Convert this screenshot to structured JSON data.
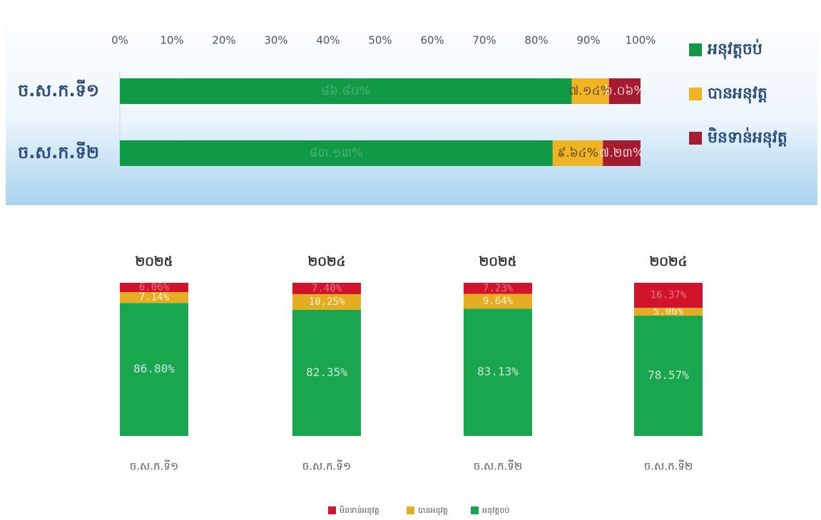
{
  "chart_data": [
    {
      "type": "bar",
      "orientation": "horizontal",
      "stacked": true,
      "legend": "right",
      "categories": [
        "ច.ស.ក.ទី១",
        "ច.ស.ក.ទី២"
      ],
      "xlim": [
        0,
        100
      ],
      "xticks": [
        {
          "value": 0,
          "label": "0%"
        },
        {
          "value": 10,
          "label": "10%"
        },
        {
          "value": 20,
          "label": "20%"
        },
        {
          "value": 30,
          "label": "30%"
        },
        {
          "value": 40,
          "label": "40%"
        },
        {
          "value": 50,
          "label": "50%"
        },
        {
          "value": 60,
          "label": "60%"
        },
        {
          "value": 70,
          "label": "70%"
        },
        {
          "value": 80,
          "label": "80%"
        },
        {
          "value": 90,
          "label": "90%"
        },
        {
          "value": 100,
          "label": "100%"
        }
      ],
      "series": [
        {
          "name": "អនុវត្តចប់",
          "color": "#109a46",
          "label_color": "#4fb07a",
          "values": [
            86.8,
            83.13
          ],
          "value_labels": [
            "៨៦.៨០%",
            "៨៣.១៣%"
          ]
        },
        {
          "name": "បានអនុវត្ត",
          "color": "#f0b324",
          "label_color": "#5a4a12",
          "values": [
            7.14,
            9.64
          ],
          "value_labels": [
            "៧.១៤%",
            "៩.៦៤%"
          ]
        },
        {
          "name": "មិនទាន់អនុវត្ត",
          "color": "#a51c30",
          "label_color": "#f2d6dc",
          "values": [
            6.06,
            7.23
          ],
          "value_labels": [
            "៦.០៦%",
            "៧.២៣%"
          ]
        }
      ]
    },
    {
      "type": "bar",
      "orientation": "vertical",
      "stacked": true,
      "legend": "bottom",
      "categories": [
        "ច.ស.ក.ទី១",
        "ច.ស.ក.ទី១",
        "ច.ស.ក.ទី២",
        "ច.ស.ក.ទី២"
      ],
      "bar_titles": [
        "២០២៥",
        "២០២៤",
        "២០២៥",
        "២០២៤"
      ],
      "ylim": [
        0,
        100
      ],
      "series": [
        {
          "name": "អនុវត្តចប់",
          "color": "#1aa64e",
          "label_color": "#c9e8d4",
          "values": [
            86.8,
            82.35,
            83.13,
            78.57
          ],
          "value_labels": [
            "86.80%",
            "82.35%",
            "83.13%",
            "78.57%"
          ]
        },
        {
          "name": "បានអនុវត្ត",
          "color": "#e6ad22",
          "label_color": "#fff3d0",
          "values": [
            7.14,
            10.25,
            9.64,
            5.06
          ],
          "value_labels": [
            "7.14%",
            "10.25%",
            "9.64%",
            "5.06%"
          ]
        },
        {
          "name": "មិនទាន់អនុវត្ត",
          "color": "#d2132c",
          "label_color": "#e07a86",
          "values": [
            6.06,
            7.4,
            7.23,
            16.37
          ],
          "value_labels": [
            "6.06%",
            "7.40%",
            "7.23%",
            "16.37%"
          ]
        }
      ]
    }
  ]
}
